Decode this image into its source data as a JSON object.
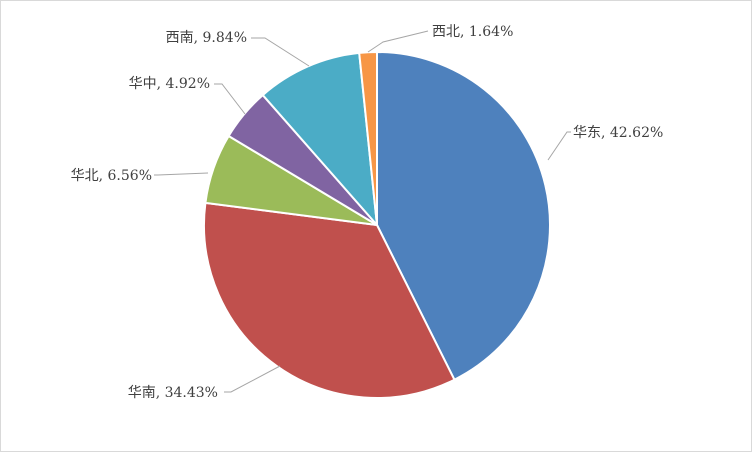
{
  "chart_data": {
    "type": "pie",
    "title": "",
    "start_angle_deg": 0,
    "direction": "clockwise",
    "slices": [
      {
        "label": "华东",
        "value": 42.62,
        "display": "华东, 42.62%",
        "color": "#4e81bd"
      },
      {
        "label": "华南",
        "value": 34.43,
        "display": "华南, 34.43%",
        "color": "#c0504d"
      },
      {
        "label": "华北",
        "value": 6.56,
        "display": "华北, 6.56%",
        "color": "#9bbb59"
      },
      {
        "label": "华中",
        "value": 4.92,
        "display": "华中, 4.92%",
        "color": "#8064a2"
      },
      {
        "label": "西南",
        "value": 9.84,
        "display": "西南, 9.84%",
        "color": "#4bacc6"
      },
      {
        "label": "西北",
        "value": 1.64,
        "display": "西北, 1.64%",
        "color": "#f79646"
      }
    ],
    "legend": "none",
    "labels": "outside with leader lines"
  }
}
